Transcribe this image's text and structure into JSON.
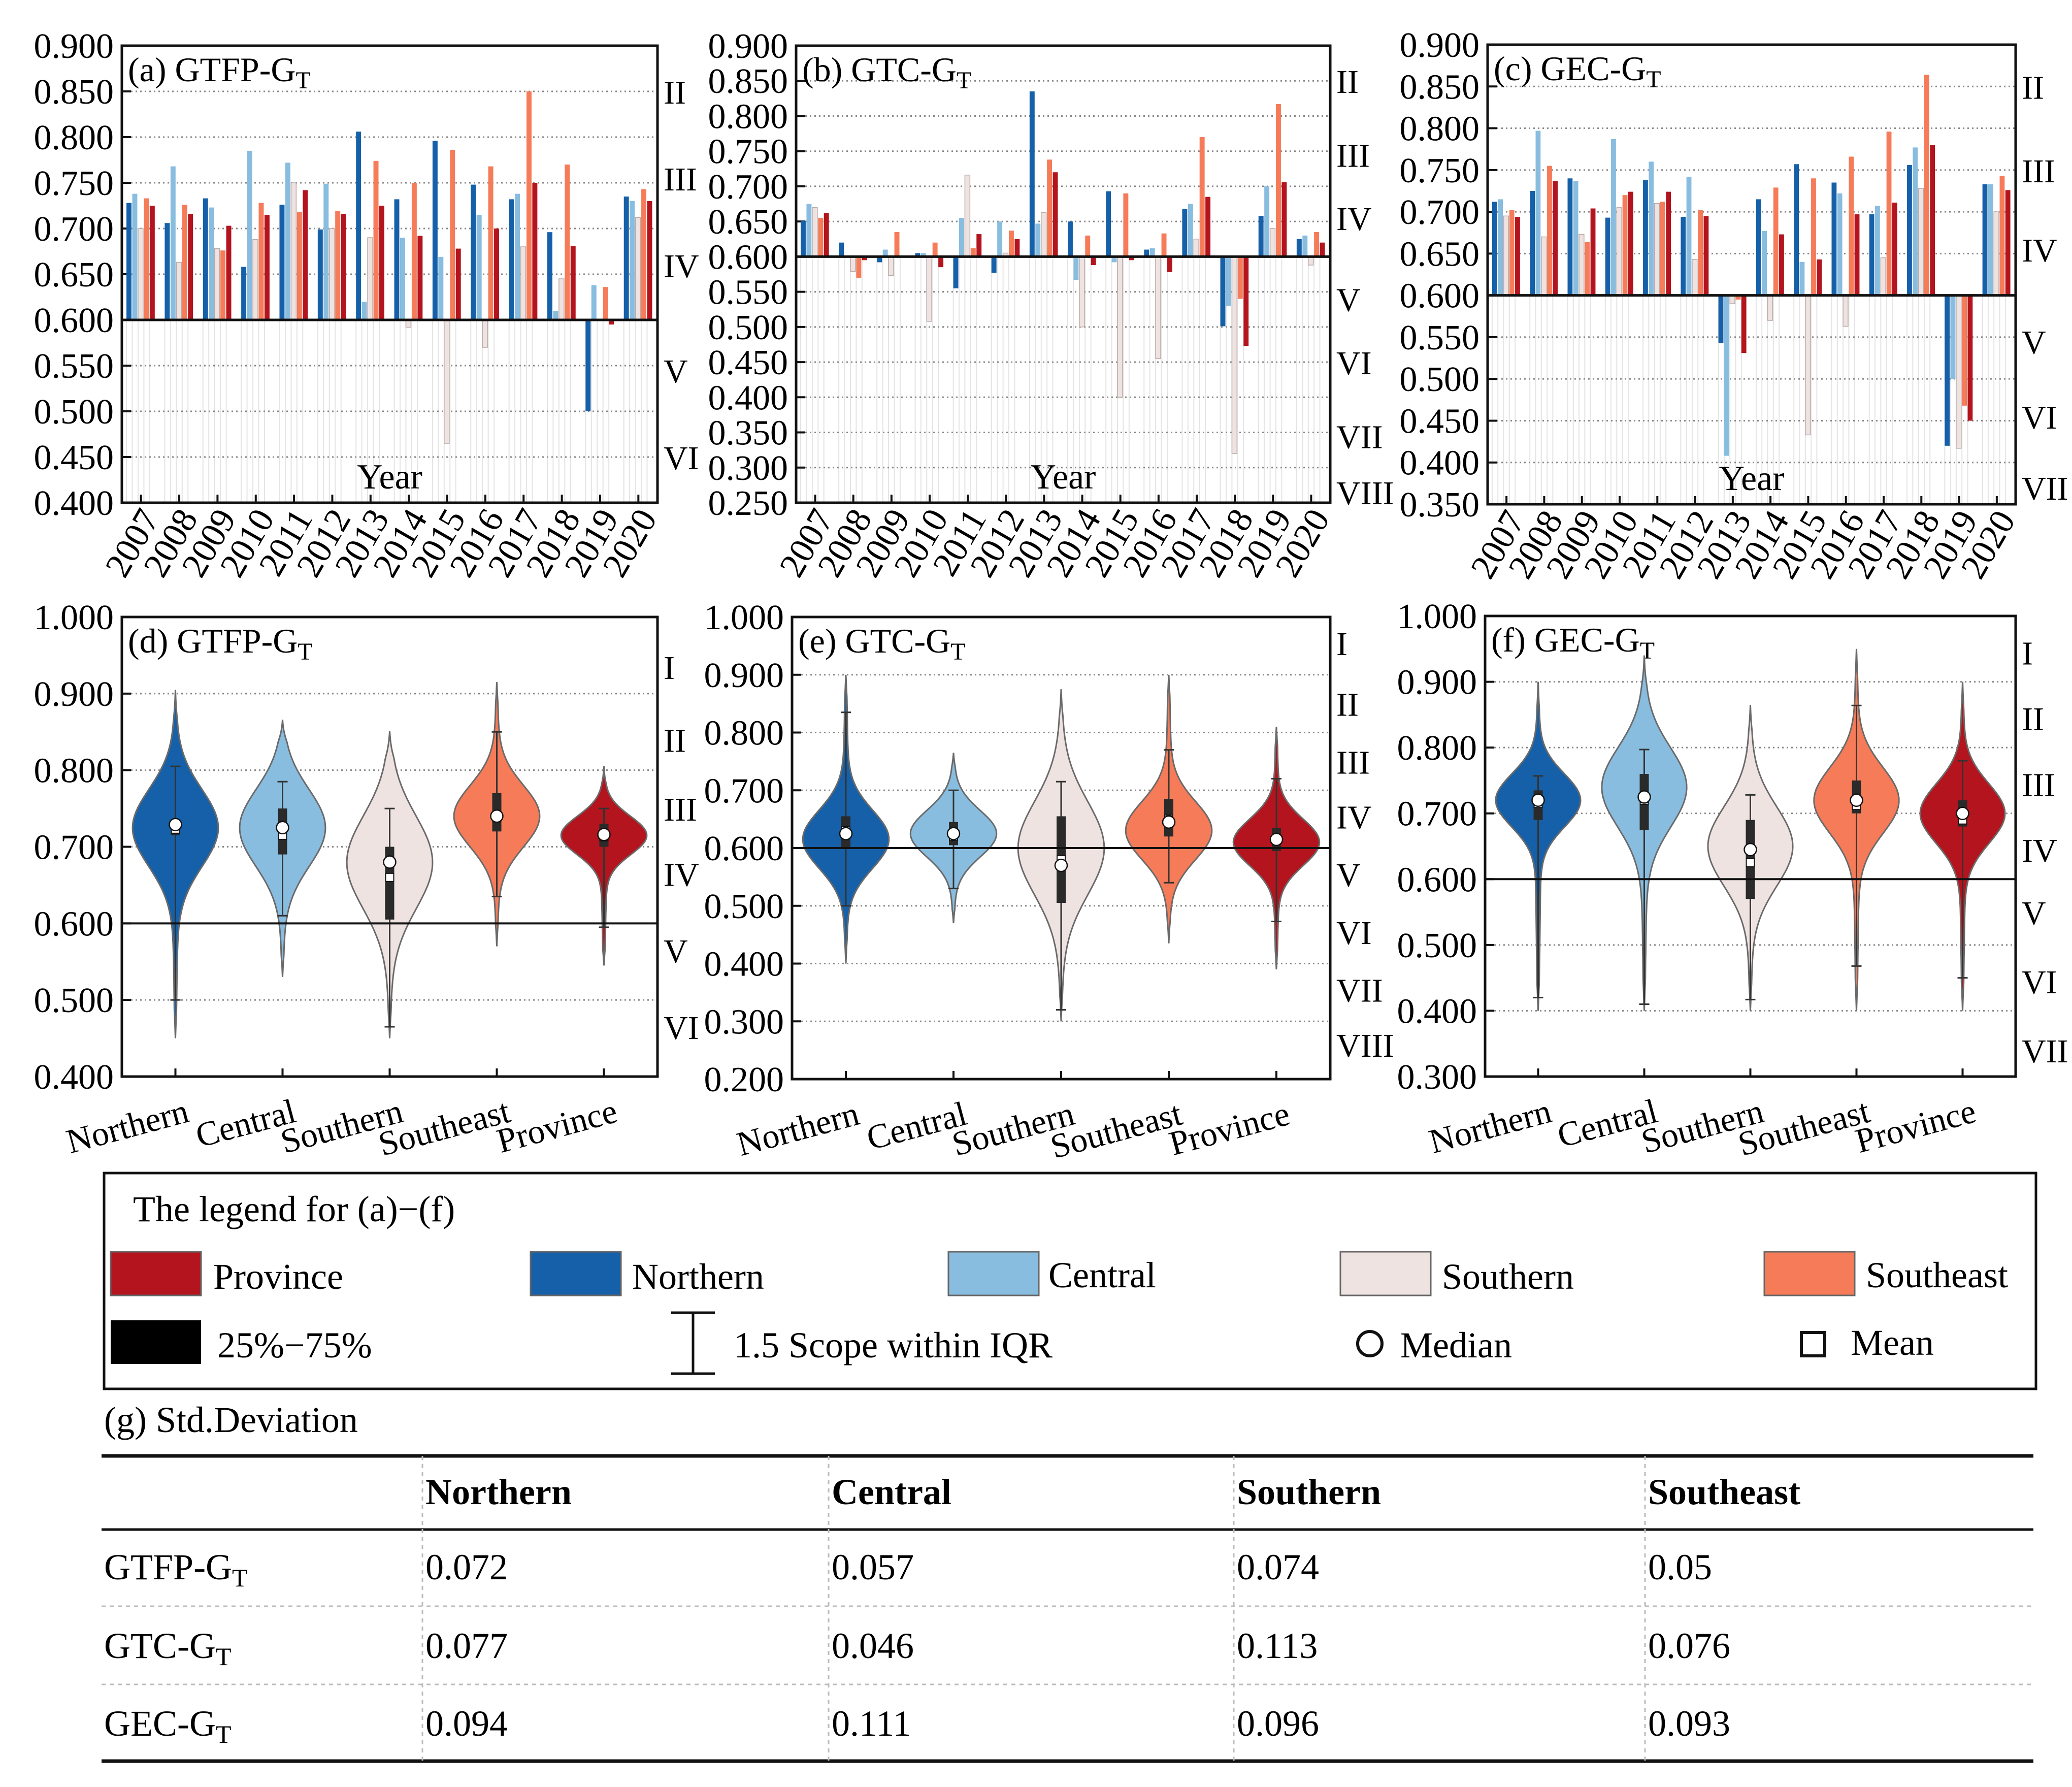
{
  "colors": {
    "Province": "#b3141d",
    "Northern": "#1560a8",
    "Central": "#88bde0",
    "Southern": "#efe3e1",
    "Southeast": "#f67b58"
  },
  "legend": {
    "title": "The legend for (a)−(f)",
    "items": [
      "Province",
      "Northern",
      "Central",
      "Southern",
      "Southeast"
    ],
    "iqr_label": "25%−75%",
    "whisker_label": "1.5 Scope within IQR",
    "median_label": "Median",
    "mean_label": "Mean"
  },
  "chart_data": [
    {
      "type": "bar",
      "id": "a",
      "title": "(a) GTFP-G",
      "title_sub": "T",
      "xlabel": "Year",
      "ylim": [
        0.4,
        0.9
      ],
      "baseline": 0.6,
      "yticks": [
        "0.400",
        "0.450",
        "0.500",
        "0.550",
        "0.600",
        "0.650",
        "0.700",
        "0.750",
        "0.800",
        "0.850",
        "0.900"
      ],
      "categories": [
        "2007",
        "2008",
        "2009",
        "2010",
        "2011",
        "2012",
        "2013",
        "2014",
        "2015",
        "2016",
        "2017",
        "2018",
        "2019",
        "2020"
      ],
      "levels": [
        {
          "label": "II",
          "value": 0.85
        },
        {
          "label": "III",
          "value": 0.755
        },
        {
          "label": "IV",
          "value": 0.66
        },
        {
          "label": "V",
          "value": 0.545
        },
        {
          "label": "VI",
          "value": 0.45
        }
      ],
      "series": [
        {
          "name": "Northern",
          "values": [
            0.728,
            0.706,
            0.733,
            0.658,
            0.726,
            0.699,
            0.806,
            0.732,
            0.796,
            0.748,
            0.732,
            0.696,
            0.5,
            0.735
          ]
        },
        {
          "name": "Central",
          "values": [
            0.738,
            0.768,
            0.723,
            0.785,
            0.772,
            0.749,
            0.62,
            0.69,
            0.669,
            0.715,
            0.738,
            0.61,
            0.638,
            0.73
          ]
        },
        {
          "name": "Southern",
          "values": [
            0.7,
            0.663,
            0.678,
            0.688,
            0.75,
            0.7,
            0.69,
            0.592,
            0.465,
            0.57,
            0.68,
            0.645,
            0.6,
            0.712
          ]
        },
        {
          "name": "Southeast",
          "values": [
            0.733,
            0.726,
            0.676,
            0.728,
            0.718,
            0.719,
            0.774,
            0.75,
            0.786,
            0.768,
            0.85,
            0.77,
            0.636,
            0.743
          ]
        },
        {
          "name": "Province",
          "values": [
            0.725,
            0.716,
            0.703,
            0.715,
            0.742,
            0.716,
            0.725,
            0.692,
            0.678,
            0.7,
            0.75,
            0.681,
            0.595,
            0.73
          ]
        }
      ]
    },
    {
      "type": "bar",
      "id": "b",
      "title": "(b) GTC-G",
      "title_sub": "T",
      "xlabel": "Year",
      "ylim": [
        0.25,
        0.9
      ],
      "baseline": 0.6,
      "yticks": [
        "0.250",
        "0.300",
        "0.350",
        "0.400",
        "0.450",
        "0.500",
        "0.550",
        "0.600",
        "0.650",
        "0.700",
        "0.750",
        "0.800",
        "0.850",
        "0.900"
      ],
      "categories": [
        "2007",
        "2008",
        "2009",
        "2010",
        "2011",
        "2012",
        "2013",
        "2014",
        "2015",
        "2016",
        "2017",
        "2018",
        "2019",
        "2020"
      ],
      "levels": [
        {
          "label": "II",
          "value": 0.85
        },
        {
          "label": "III",
          "value": 0.745
        },
        {
          "label": "IV",
          "value": 0.655
        },
        {
          "label": "V",
          "value": 0.54
        },
        {
          "label": "VI",
          "value": 0.45
        },
        {
          "label": "VII",
          "value": 0.345
        },
        {
          "label": "VIII",
          "value": 0.265
        }
      ],
      "series": [
        {
          "name": "Northern",
          "values": [
            0.651,
            0.62,
            0.592,
            0.605,
            0.555,
            0.577,
            0.835,
            0.65,
            0.693,
            0.61,
            0.668,
            0.501,
            0.658,
            0.625
          ]
        },
        {
          "name": "Central",
          "values": [
            0.675,
            0.601,
            0.61,
            0.605,
            0.655,
            0.65,
            0.647,
            0.567,
            0.592,
            0.612,
            0.675,
            0.53,
            0.7,
            0.63
          ]
        },
        {
          "name": "Southern",
          "values": [
            0.67,
            0.579,
            0.573,
            0.508,
            0.716,
            0.605,
            0.663,
            0.5,
            0.4,
            0.455,
            0.625,
            0.32,
            0.64,
            0.588
          ]
        },
        {
          "name": "Southeast",
          "values": [
            0.655,
            0.57,
            0.635,
            0.62,
            0.612,
            0.637,
            0.738,
            0.63,
            0.69,
            0.633,
            0.77,
            0.54,
            0.817,
            0.635
          ]
        },
        {
          "name": "Province",
          "values": [
            0.662,
            0.595,
            0.6,
            0.585,
            0.632,
            0.625,
            0.72,
            0.588,
            0.595,
            0.578,
            0.685,
            0.473,
            0.706,
            0.62
          ]
        }
      ]
    },
    {
      "type": "bar",
      "id": "c",
      "title": "(c) GEC-G",
      "title_sub": "T",
      "xlabel": "Year",
      "ylim": [
        0.35,
        0.9
      ],
      "baseline": 0.6,
      "yticks": [
        "0.350",
        "0.400",
        "0.450",
        "0.500",
        "0.550",
        "0.600",
        "0.650",
        "0.700",
        "0.750",
        "0.800",
        "0.850",
        "0.900"
      ],
      "categories": [
        "2007",
        "2008",
        "2009",
        "2010",
        "2011",
        "2012",
        "2013",
        "2014",
        "2015",
        "2016",
        "2017",
        "2018",
        "2019",
        "2020"
      ],
      "levels": [
        {
          "label": "II",
          "value": 0.85
        },
        {
          "label": "III",
          "value": 0.75
        },
        {
          "label": "IV",
          "value": 0.655
        },
        {
          "label": "V",
          "value": 0.545
        },
        {
          "label": "VI",
          "value": 0.455
        },
        {
          "label": "VII",
          "value": 0.37
        }
      ],
      "series": [
        {
          "name": "Northern",
          "values": [
            0.712,
            0.725,
            0.74,
            0.693,
            0.738,
            0.694,
            0.543,
            0.715,
            0.757,
            0.735,
            0.697,
            0.756,
            0.42,
            0.733
          ]
        },
        {
          "name": "Central",
          "values": [
            0.715,
            0.797,
            0.737,
            0.787,
            0.76,
            0.742,
            0.408,
            0.677,
            0.64,
            0.722,
            0.707,
            0.777,
            0.5,
            0.733
          ]
        },
        {
          "name": "Southern",
          "values": [
            0.695,
            0.67,
            0.673,
            0.705,
            0.71,
            0.643,
            0.59,
            0.57,
            0.433,
            0.563,
            0.645,
            0.728,
            0.417,
            0.7
          ]
        },
        {
          "name": "Southeast",
          "values": [
            0.702,
            0.755,
            0.664,
            0.72,
            0.712,
            0.702,
            0.595,
            0.729,
            0.74,
            0.766,
            0.796,
            0.864,
            0.468,
            0.743
          ]
        },
        {
          "name": "Province",
          "values": [
            0.694,
            0.737,
            0.704,
            0.724,
            0.724,
            0.695,
            0.531,
            0.673,
            0.643,
            0.697,
            0.711,
            0.78,
            0.45,
            0.726
          ]
        }
      ]
    },
    {
      "type": "violin",
      "id": "d",
      "title": "(d) GTFP-G",
      "title_sub": "T",
      "ylim": [
        0.4,
        1.0
      ],
      "baseline": 0.6,
      "yticks": [
        "0.400",
        "0.500",
        "0.600",
        "0.700",
        "0.800",
        "0.900",
        "1.000"
      ],
      "categories": [
        "Northern",
        "Central",
        "Southern",
        "Southeast",
        "Province"
      ],
      "levels": [
        {
          "label": "I",
          "value": 0.935
        },
        {
          "label": "II",
          "value": 0.84
        },
        {
          "label": "III",
          "value": 0.75
        },
        {
          "label": "IV",
          "value": 0.665
        },
        {
          "label": "V",
          "value": 0.565
        },
        {
          "label": "VI",
          "value": 0.465
        }
      ],
      "groups": [
        {
          "name": "Northern",
          "min": 0.45,
          "max": 0.905,
          "q1": 0.715,
          "q3": 0.735,
          "median": 0.729,
          "mean": 0.723,
          "wlo": 0.5,
          "whi": 0.805,
          "mode": 0.725,
          "spread": 0.05
        },
        {
          "name": "Central",
          "min": 0.53,
          "max": 0.865,
          "q1": 0.69,
          "q3": 0.75,
          "median": 0.725,
          "mean": 0.715,
          "wlo": 0.61,
          "whi": 0.785,
          "mode": 0.725,
          "spread": 0.05
        },
        {
          "name": "Southern",
          "min": 0.45,
          "max": 0.85,
          "q1": 0.605,
          "q3": 0.7,
          "median": 0.68,
          "mean": 0.66,
          "wlo": 0.465,
          "whi": 0.75,
          "mode": 0.68,
          "spread": 0.06
        },
        {
          "name": "Southeast",
          "min": 0.57,
          "max": 0.915,
          "q1": 0.72,
          "q3": 0.77,
          "median": 0.74,
          "mean": 0.738,
          "wlo": 0.635,
          "whi": 0.85,
          "mode": 0.74,
          "spread": 0.04
        },
        {
          "name": "Province",
          "min": 0.545,
          "max": 0.805,
          "q1": 0.7,
          "q3": 0.73,
          "median": 0.716,
          "mean": 0.713,
          "wlo": 0.595,
          "whi": 0.75,
          "mode": 0.715,
          "spread": 0.025
        }
      ]
    },
    {
      "type": "violin",
      "id": "e",
      "title": "(e) GTC-G",
      "title_sub": "T",
      "ylim": [
        0.2,
        1.0
      ],
      "baseline": 0.6,
      "yticks": [
        "0.200",
        "0.300",
        "0.400",
        "0.500",
        "0.600",
        "0.700",
        "0.800",
        "0.900",
        "1.000"
      ],
      "categories": [
        "Northern",
        "Central",
        "Southern",
        "Southeast",
        "Province"
      ],
      "levels": [
        {
          "label": "I",
          "value": 0.955
        },
        {
          "label": "II",
          "value": 0.85
        },
        {
          "label": "III",
          "value": 0.75
        },
        {
          "label": "IV",
          "value": 0.655
        },
        {
          "label": "V",
          "value": 0.555
        },
        {
          "label": "VI",
          "value": 0.455
        },
        {
          "label": "VII",
          "value": 0.355
        },
        {
          "label": "VIII",
          "value": 0.26
        }
      ],
      "groups": [
        {
          "name": "Northern",
          "min": 0.4,
          "max": 0.9,
          "q1": 0.6,
          "q3": 0.655,
          "median": 0.625,
          "mean": 0.63,
          "wlo": 0.5,
          "whi": 0.835,
          "mode": 0.615,
          "spread": 0.05
        },
        {
          "name": "Central",
          "min": 0.47,
          "max": 0.765,
          "q1": 0.605,
          "q3": 0.645,
          "median": 0.625,
          "mean": 0.62,
          "wlo": 0.53,
          "whi": 0.7,
          "mode": 0.625,
          "spread": 0.04
        },
        {
          "name": "Southern",
          "min": 0.3,
          "max": 0.875,
          "q1": 0.505,
          "q3": 0.655,
          "median": 0.57,
          "mean": 0.58,
          "wlo": 0.32,
          "whi": 0.715,
          "mode": 0.6,
          "spread": 0.08
        },
        {
          "name": "Southeast",
          "min": 0.435,
          "max": 0.9,
          "q1": 0.62,
          "q3": 0.685,
          "median": 0.645,
          "mean": 0.65,
          "wlo": 0.54,
          "whi": 0.77,
          "mode": 0.63,
          "spread": 0.05
        },
        {
          "name": "Province",
          "min": 0.39,
          "max": 0.81,
          "q1": 0.595,
          "q3": 0.635,
          "median": 0.615,
          "mean": 0.615,
          "wlo": 0.473,
          "whi": 0.72,
          "mode": 0.61,
          "spread": 0.04
        }
      ]
    },
    {
      "type": "violin",
      "id": "f",
      "title": "(f) GEC-G",
      "title_sub": "T",
      "ylim": [
        0.3,
        1.0
      ],
      "baseline": 0.6,
      "yticks": [
        "0.300",
        "0.400",
        "0.500",
        "0.600",
        "0.700",
        "0.800",
        "0.900",
        "1.000"
      ],
      "categories": [
        "Northern",
        "Central",
        "Southern",
        "Southeast",
        "Province"
      ],
      "levels": [
        {
          "label": "I",
          "value": 0.945
        },
        {
          "label": "II",
          "value": 0.845
        },
        {
          "label": "III",
          "value": 0.745
        },
        {
          "label": "IV",
          "value": 0.645
        },
        {
          "label": "V",
          "value": 0.55
        },
        {
          "label": "VI",
          "value": 0.445
        },
        {
          "label": "VII",
          "value": 0.34
        }
      ],
      "groups": [
        {
          "name": "Northern",
          "min": 0.4,
          "max": 0.9,
          "q1": 0.69,
          "q3": 0.735,
          "median": 0.72,
          "mean": 0.715,
          "wlo": 0.42,
          "whi": 0.757,
          "mode": 0.72,
          "spread": 0.04
        },
        {
          "name": "Central",
          "min": 0.4,
          "max": 0.94,
          "q1": 0.675,
          "q3": 0.76,
          "median": 0.725,
          "mean": 0.72,
          "wlo": 0.41,
          "whi": 0.797,
          "mode": 0.74,
          "spread": 0.06
        },
        {
          "name": "Southern",
          "min": 0.4,
          "max": 0.865,
          "q1": 0.57,
          "q3": 0.69,
          "median": 0.645,
          "mean": 0.625,
          "wlo": 0.417,
          "whi": 0.728,
          "mode": 0.65,
          "spread": 0.06
        },
        {
          "name": "Southeast",
          "min": 0.4,
          "max": 0.95,
          "q1": 0.7,
          "q3": 0.75,
          "median": 0.72,
          "mean": 0.712,
          "wlo": 0.468,
          "whi": 0.864,
          "mode": 0.72,
          "spread": 0.05
        },
        {
          "name": "Province",
          "min": 0.4,
          "max": 0.9,
          "q1": 0.68,
          "q3": 0.72,
          "median": 0.7,
          "mean": 0.69,
          "wlo": 0.45,
          "whi": 0.78,
          "mode": 0.7,
          "spread": 0.045
        }
      ]
    }
  ],
  "table": {
    "title": "(g)   Std.Deviation",
    "columns": [
      "",
      "Northern",
      "Central",
      "Southern",
      "Southeast"
    ],
    "rows": [
      {
        "label": "GTFP-G",
        "sub": "T",
        "values": [
          "0.072",
          "0.057",
          "0.074",
          "0.05"
        ]
      },
      {
        "label": "GTC-G",
        "sub": "T",
        "values": [
          "0.077",
          "0.046",
          "0.113",
          "0.076"
        ]
      },
      {
        "label": "GEC-G",
        "sub": "T",
        "values": [
          "0.094",
          "0.111",
          "0.096",
          "0.093"
        ]
      }
    ]
  }
}
